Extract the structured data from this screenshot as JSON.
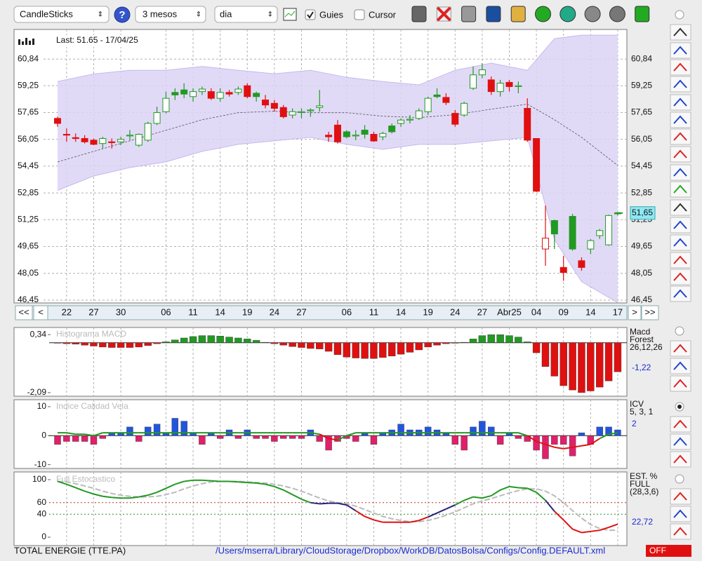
{
  "toolbar": {
    "chart_type": "CandleSticks",
    "help": "?",
    "period": "3 mesos",
    "interval": "dia",
    "guides": "Guies",
    "guides_checked": true,
    "cursor": "Cursor",
    "cursor_checked": false
  },
  "price_chart": {
    "last_label": "Last: 51.65 - 17/04/25",
    "current_price": {
      "value": 51.65,
      "label": "51,65"
    },
    "ylim": [
      46.28,
      62.61
    ],
    "yticks": [
      {
        "value": 60.84,
        "label": "60,84"
      },
      {
        "value": 59.25,
        "label": "59,25"
      },
      {
        "value": 57.65,
        "label": "57,65"
      },
      {
        "value": 56.05,
        "label": "56,05"
      },
      {
        "value": 54.45,
        "label": "54,45"
      },
      {
        "value": 52.85,
        "label": "52,85"
      },
      {
        "value": 51.25,
        "label": "51,25"
      },
      {
        "value": 49.65,
        "label": "49,65"
      },
      {
        "value": 48.05,
        "label": "48,05"
      },
      {
        "value": 46.45,
        "label": "46,45"
      }
    ],
    "categories": [
      null,
      "22",
      null,
      null,
      "27",
      null,
      null,
      "30",
      null,
      null,
      null,
      null,
      "06",
      null,
      null,
      "11",
      null,
      null,
      "14",
      null,
      null,
      "19",
      null,
      null,
      "24",
      null,
      null,
      "27",
      null,
      null,
      null,
      null,
      "06",
      null,
      null,
      "11",
      null,
      null,
      "14",
      null,
      null,
      "19",
      null,
      null,
      "24",
      null,
      null,
      "27",
      null,
      null,
      "Abr25",
      null,
      null,
      "04",
      null,
      null,
      "09",
      null,
      null,
      "14",
      null,
      null,
      "17"
    ],
    "open": [
      57.3,
      56.35,
      56.15,
      56.1,
      56.0,
      55.8,
      55.9,
      55.9,
      56.25,
      55.7,
      56.0,
      57.0,
      57.7,
      58.85,
      59.0,
      58.6,
      58.9,
      58.9,
      58.5,
      58.85,
      58.85,
      59.25,
      58.8,
      58.4,
      58.2,
      57.95,
      57.5,
      57.65,
      57.75,
      57.95,
      56.3,
      56.9,
      56.5,
      56.25,
      56.6,
      56.35,
      56.2,
      56.85,
      57.0,
      57.2,
      57.3,
      57.7,
      58.7,
      58.55,
      57.6,
      57.5,
      59.1,
      59.9,
      59.6,
      58.9,
      59.45,
      59.25,
      57.9,
      56.1,
      49.5,
      51.2,
      48.4,
      51.45,
      48.8,
      49.5,
      50.3,
      49.75,
      51.6
    ],
    "high": [
      57.4,
      56.7,
      56.4,
      56.3,
      56.1,
      56.2,
      56.1,
      56.2,
      56.6,
      56.4,
      57.1,
      58.0,
      58.9,
      59.1,
      59.4,
      59.1,
      59.2,
      59.1,
      59.1,
      59.0,
      59.2,
      59.4,
      58.9,
      58.7,
      58.4,
      58.1,
      57.9,
      57.9,
      57.9,
      59.0,
      56.5,
      57.2,
      56.6,
      56.6,
      56.9,
      56.5,
      56.5,
      57.0,
      57.3,
      57.5,
      57.9,
      58.6,
      59.1,
      58.8,
      57.8,
      58.3,
      60.4,
      60.6,
      59.8,
      59.6,
      59.6,
      59.5,
      58.5,
      56.1,
      52.1,
      51.25,
      49.1,
      51.6,
      49.0,
      50.1,
      50.7,
      51.55,
      51.7
    ],
    "low": [
      56.8,
      55.9,
      55.9,
      55.8,
      55.7,
      55.5,
      55.5,
      55.7,
      56.0,
      55.6,
      55.9,
      56.9,
      57.6,
      58.4,
      58.5,
      58.3,
      58.7,
      58.4,
      58.3,
      58.6,
      58.7,
      58.5,
      58.3,
      57.9,
      57.7,
      57.3,
      57.3,
      57.3,
      57.4,
      57.7,
      55.9,
      55.8,
      56.1,
      56.0,
      56.1,
      55.9,
      56.0,
      56.4,
      56.8,
      57.0,
      57.2,
      57.5,
      58.5,
      58.1,
      56.8,
      57.4,
      59.0,
      59.7,
      58.7,
      58.6,
      58.9,
      58.8,
      55.9,
      52.9,
      48.5,
      49.5,
      47.6,
      49.4,
      48.2,
      49.2,
      50.1,
      49.7,
      51.5
    ],
    "close": [
      57.0,
      56.3,
      56.1,
      55.9,
      55.75,
      56.1,
      55.85,
      56.05,
      56.3,
      56.35,
      57.0,
      57.65,
      58.5,
      58.7,
      58.75,
      58.9,
      59.05,
      58.5,
      58.85,
      58.75,
      59.05,
      58.6,
      58.6,
      58.1,
      57.9,
      57.4,
      57.7,
      57.7,
      57.8,
      58.05,
      56.2,
      55.9,
      56.2,
      56.3,
      56.35,
      55.95,
      56.4,
      56.5,
      57.2,
      57.25,
      57.75,
      58.5,
      58.6,
      58.25,
      56.95,
      58.2,
      59.9,
      60.2,
      58.9,
      59.4,
      59.2,
      59.25,
      56.0,
      52.95,
      50.15,
      50.4,
      48.1,
      49.5,
      48.4,
      50.0,
      50.6,
      51.5,
      51.65
    ],
    "up_color": "#229922",
    "down_color": "#e01010",
    "bands": {
      "index": [
        0,
        4,
        8,
        12,
        16,
        20,
        24,
        28,
        32,
        36,
        40,
        44,
        48,
        52,
        55,
        58,
        62
      ],
      "upper": [
        59.5,
        59.95,
        60.17,
        60.17,
        60.4,
        60.17,
        59.96,
        60.17,
        59.75,
        59.5,
        59.3,
        60.17,
        60.6,
        60.17,
        62.06,
        62.27,
        62.27
      ],
      "middle": [
        54.7,
        55.33,
        55.96,
        56.59,
        57.22,
        57.64,
        57.73,
        57.64,
        57.64,
        57.43,
        57.35,
        57.52,
        57.85,
        58.15,
        57.22,
        56.17,
        54.49
      ],
      "lower": [
        53.0,
        53.86,
        54.36,
        54.7,
        55.33,
        55.75,
        55.96,
        56.17,
        55.75,
        55.45,
        55.75,
        55.75,
        55.96,
        56.17,
        50.07,
        47.55,
        46.3
      ],
      "fill": "#dcd4f6",
      "edge": "#c6b8ee",
      "mid_color": "#555555"
    },
    "nav": {
      "first": "<<",
      "prev": "<",
      "next": ">",
      "last": ">>"
    }
  },
  "macd": {
    "title": "Histograma MACD",
    "ylim": [
      -2.24,
      0.64
    ],
    "yticks": [
      {
        "value": 0.34,
        "label": "0,34"
      },
      {
        "value": -2.09,
        "label": "-2,09"
      }
    ],
    "values": [
      -0.02,
      -0.04,
      -0.06,
      -0.1,
      -0.14,
      -0.18,
      -0.2,
      -0.2,
      -0.2,
      -0.18,
      -0.12,
      -0.04,
      0.04,
      0.12,
      0.2,
      0.26,
      0.3,
      0.3,
      0.28,
      0.24,
      0.2,
      0.16,
      0.1,
      0.02,
      -0.04,
      -0.1,
      -0.16,
      -0.2,
      -0.24,
      -0.26,
      -0.36,
      -0.5,
      -0.6,
      -0.64,
      -0.66,
      -0.66,
      -0.62,
      -0.56,
      -0.48,
      -0.4,
      -0.3,
      -0.18,
      -0.1,
      -0.04,
      -0.02,
      0.02,
      0.16,
      0.3,
      0.34,
      0.34,
      0.3,
      0.24,
      0.04,
      -0.42,
      -1.0,
      -1.4,
      -1.8,
      -1.98,
      -2.09,
      -2.02,
      -1.86,
      -1.6,
      -1.22
    ],
    "pos_color": "#229922",
    "neg_color": "#e01010",
    "legend": [
      "Macd",
      "Forest",
      "26,12,26"
    ],
    "last_label": "-1,22"
  },
  "icv": {
    "title": "Indice Calidad Vela",
    "ylim": [
      -11.3,
      12.4
    ],
    "yticks": [
      10,
      0,
      -10
    ],
    "values": [
      -3,
      -2,
      -2,
      -2,
      -3,
      -1,
      1,
      1,
      3,
      -2,
      3,
      4,
      1,
      6,
      5,
      1,
      -3,
      1,
      -1,
      2,
      -1,
      2,
      -1,
      -1,
      -2,
      -1,
      -1,
      -1,
      2,
      -2,
      -5,
      -2,
      -1,
      -2,
      1,
      -3,
      1,
      2,
      4,
      2,
      2,
      3,
      2,
      1,
      -3,
      -5,
      3,
      5,
      3,
      -3,
      1,
      -1,
      -2,
      -5,
      -8,
      -3,
      -3,
      -7,
      1,
      -3,
      3,
      3,
      2
    ],
    "signal": [
      1,
      1,
      0.5,
      0.5,
      0,
      1,
      1,
      1,
      1,
      1,
      1,
      1,
      1,
      1,
      1,
      1,
      1,
      1,
      1,
      1,
      1,
      1,
      1,
      1,
      1,
      1,
      1,
      1,
      1,
      0.5,
      -1,
      -1.5,
      0,
      1,
      1,
      1,
      1,
      1,
      1,
      1,
      1,
      1,
      1,
      1,
      1,
      1,
      1,
      1,
      1,
      1,
      1,
      1,
      0,
      -2,
      -3,
      -4,
      -4.5,
      -4,
      -3.5,
      -3,
      -1,
      0.5,
      1
    ],
    "pos_color": "#2255dd",
    "neg_color": "#e0206a",
    "line_up": "#229922",
    "line_down": "#e01010",
    "legend": [
      "ICV",
      "5, 3, 1"
    ],
    "last_label": "2"
  },
  "stochastic": {
    "title": "Full Estocastico",
    "ylim": [
      -14.6,
      113.4
    ],
    "yticks": [
      100,
      60,
      40,
      0
    ],
    "k": [
      97,
      92,
      86,
      80,
      75,
      71,
      69,
      68,
      68,
      70,
      73,
      78,
      85,
      92,
      97,
      99,
      99,
      98,
      97,
      97,
      96,
      95,
      94,
      92,
      88,
      82,
      74,
      66,
      60,
      58,
      59,
      59,
      56,
      46,
      36,
      30,
      26,
      26,
      26,
      26,
      29,
      35,
      42,
      49,
      56,
      64,
      70,
      68,
      72,
      82,
      88,
      86,
      85,
      78,
      64,
      45,
      30,
      14,
      8,
      10,
      12,
      17,
      22.72
    ],
    "d": [
      97,
      96,
      93,
      89,
      85,
      80,
      76,
      73,
      71,
      70,
      70,
      71,
      74,
      78,
      84,
      89,
      93,
      96,
      97,
      97,
      97,
      96,
      95,
      94,
      92,
      89,
      85,
      80,
      74,
      68,
      63,
      60,
      58,
      54,
      48,
      42,
      36,
      32,
      29,
      27,
      27,
      29,
      33,
      38,
      44,
      51,
      58,
      63,
      67,
      72,
      77,
      81,
      84,
      84,
      80,
      72,
      60,
      46,
      33,
      22,
      15,
      12,
      12
    ],
    "high_color": "#229922",
    "mid_color": "#27237a",
    "low_color": "#e01010",
    "d_color": "#bbbbbb",
    "legend": [
      "EST. %",
      "FULL",
      "(28,3,6)"
    ],
    "last_label": "22,72"
  },
  "status": {
    "symbol": "TOTAL ENERGIE (TTE.PA)",
    "path": "/Users/mserra/Library/CloudStorage/Dropbox/WorkDB/DatosBolsa/Configs/Config.DEFAULT.xml",
    "state": "OFF"
  }
}
